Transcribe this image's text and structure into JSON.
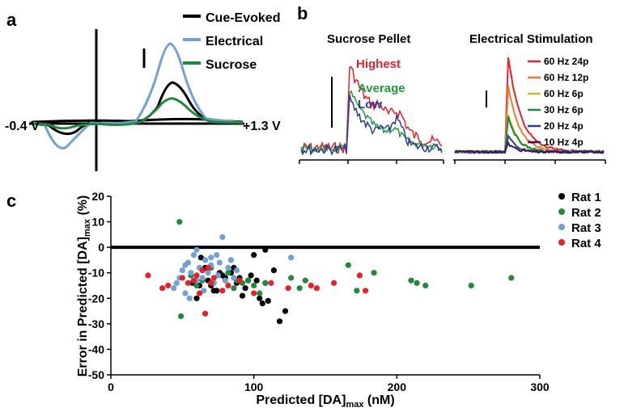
{
  "colors": {
    "black": "#000000",
    "electrical": "#6fa0d8",
    "sucrose": "#1e8a3c",
    "highest": "#e8202a",
    "average": "#1e9a3c",
    "low": "#2d3a96",
    "stim": [
      "#e8202a",
      "#f07a2a",
      "#c9c22a",
      "#1e8a3c",
      "#2d3a96",
      "#3a1a5a"
    ],
    "rats": [
      "#000000",
      "#1e8a3c",
      "#6fa0d8",
      "#e8202a"
    ]
  },
  "panel_a": {
    "letter": "a",
    "legend": [
      "Cue-Evoked",
      "Electrical",
      "Sucrose"
    ],
    "left_label": "-0.4 V",
    "right_label": "+1.3 V"
  },
  "panel_b": {
    "letter": "b",
    "left_title": "Sucrose Pellet",
    "right_title": "Electrical Stimulation",
    "left_labels": [
      "Highest",
      "Average",
      "Low"
    ],
    "right_legend": [
      "60 Hz 24p",
      "60 Hz 12p",
      "60 Hz 6p",
      "30 Hz 6p",
      "20 Hz 4p",
      "10 Hz 4p"
    ]
  },
  "panel_c": {
    "letter": "c"
  },
  "chart_data": {
    "type": "scatter",
    "xlabel_main": "Predicted [DA]",
    "xlabel_sub": "max",
    "xlabel_unit": " (nM)",
    "ylabel_main": "Error in Predicted [DA]",
    "ylabel_sub": "max",
    "ylabel_unit": " (%)",
    "xlim": [
      0,
      300
    ],
    "ylim": [
      -50,
      20
    ],
    "xticks": [
      "0",
      "100",
      "200",
      "300"
    ],
    "yticks": [
      "20",
      "10",
      "0",
      "-10",
      "-20",
      "-30",
      "-40",
      "-50"
    ],
    "reference_line_y": 0,
    "legend_position": "top-right",
    "series": [
      {
        "name": "Rat 1",
        "x": [
          57,
          60,
          63,
          66,
          68,
          70,
          72,
          76,
          78,
          80,
          86,
          88,
          90,
          92,
          94,
          96,
          98,
          100,
          102,
          104,
          106,
          108,
          110,
          114,
          118,
          122,
          74,
          62,
          84,
          108
        ],
        "y": [
          -14,
          -20,
          -4,
          -8,
          -13,
          -15,
          -17,
          -10,
          -11,
          -12,
          -8,
          -14,
          -12,
          -19,
          -16,
          -13,
          -11,
          -3,
          -13,
          -20,
          -22,
          -14,
          -21,
          -9,
          -29,
          -25,
          -17,
          -15,
          -10,
          -1
        ]
      },
      {
        "name": "Rat 2",
        "x": [
          48,
          49,
          56,
          60,
          64,
          72,
          82,
          86,
          92,
          96,
          100,
          104,
          108,
          126,
          136,
          166,
          172,
          184,
          210,
          214,
          220,
          252,
          280,
          132,
          88,
          70
        ],
        "y": [
          10,
          -27,
          -11,
          -15,
          -13,
          -14,
          -10,
          -16,
          -14,
          -13,
          -15,
          -18,
          -14,
          -12,
          -13,
          -7,
          -17,
          -10,
          -13,
          -14,
          -15,
          -15,
          -12,
          -16,
          -13,
          -8
        ]
      },
      {
        "name": "Rat 3",
        "x": [
          44,
          46,
          48,
          50,
          52,
          54,
          56,
          58,
          60,
          62,
          64,
          66,
          68,
          70,
          72,
          74,
          76,
          78,
          80,
          82,
          84,
          86,
          88,
          126,
          55,
          65,
          75,
          60,
          52,
          70
        ],
        "y": [
          -16,
          -14,
          -12,
          -9,
          -18,
          -6,
          -10,
          -3,
          -1,
          -8,
          -12,
          -5,
          -10,
          -7,
          -14,
          -3,
          -6,
          4,
          -13,
          -8,
          -5,
          -12,
          -9,
          -4,
          -20,
          -17,
          -11,
          -13,
          -7,
          -4
        ]
      },
      {
        "name": "Rat 4",
        "x": [
          26,
          36,
          40,
          50,
          54,
          60,
          64,
          66,
          68,
          70,
          72,
          78,
          82,
          90,
          100,
          112,
          124,
          140,
          144,
          156,
          174,
          178,
          62,
          58
        ],
        "y": [
          -11,
          -16,
          -15,
          -12,
          -14,
          -11,
          -9,
          -26,
          -8,
          -14,
          -12,
          -17,
          -15,
          -13,
          -18,
          -14,
          -16,
          -15,
          -16,
          -14,
          -11,
          -17,
          -18,
          -13
        ]
      }
    ]
  }
}
